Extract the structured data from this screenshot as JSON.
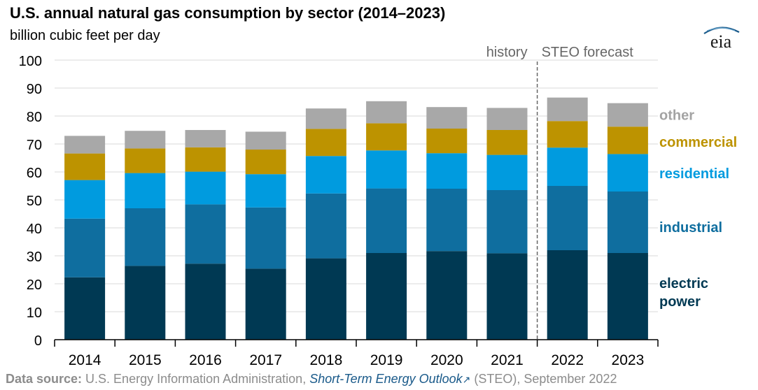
{
  "title": "U.S. annual natural gas consumption by sector (2014–2023)",
  "subtitle": "billion cubic feet per day",
  "logo_text": "eia",
  "source": {
    "label": "Data source:",
    "text1": " U.S. Energy Information Administration, ",
    "link_text": "Short-Term Energy Outlook",
    "text2": " (STEO), September 2022"
  },
  "chart_data": {
    "type": "bar",
    "stacked": true,
    "categories": [
      "2014",
      "2015",
      "2016",
      "2017",
      "2018",
      "2019",
      "2020",
      "2021",
      "2022",
      "2023"
    ],
    "ylim": [
      0,
      100
    ],
    "yticks": [
      0,
      10,
      20,
      30,
      40,
      50,
      60,
      70,
      80,
      90,
      100
    ],
    "grid": true,
    "annotations": {
      "history": "history",
      "forecast": "STEO forecast"
    },
    "series": [
      {
        "name": "electric power",
        "color": "#003953",
        "values": [
          22.3,
          26.4,
          27.2,
          25.4,
          29.1,
          31.0,
          31.7,
          30.9,
          32.0,
          31.0
        ]
      },
      {
        "name": "industrial",
        "color": "#0f6e9f",
        "values": [
          21.0,
          20.6,
          21.2,
          21.9,
          23.2,
          23.1,
          22.3,
          22.6,
          23.0,
          22.0
        ]
      },
      {
        "name": "residential",
        "color": "#009bdf",
        "values": [
          13.8,
          12.6,
          11.7,
          11.9,
          13.4,
          13.6,
          12.7,
          12.6,
          13.7,
          13.4
        ]
      },
      {
        "name": "commercial",
        "color": "#bd9300",
        "values": [
          9.5,
          8.8,
          8.7,
          8.8,
          9.7,
          9.7,
          8.8,
          8.9,
          9.5,
          9.8
        ]
      },
      {
        "name": "other",
        "color": "#a8a8a8",
        "values": [
          6.3,
          6.3,
          6.2,
          6.4,
          7.3,
          7.9,
          7.7,
          7.9,
          8.4,
          8.4
        ]
      }
    ]
  }
}
